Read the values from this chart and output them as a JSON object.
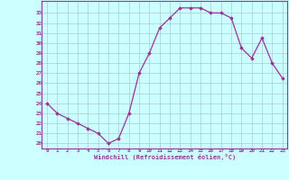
{
  "x": [
    0,
    1,
    2,
    3,
    4,
    5,
    6,
    7,
    8,
    9,
    10,
    11,
    12,
    13,
    14,
    15,
    16,
    17,
    18,
    19,
    20,
    21,
    22,
    23
  ],
  "y": [
    24.0,
    23.0,
    22.5,
    22.0,
    21.5,
    21.0,
    20.0,
    20.5,
    23.0,
    27.0,
    29.0,
    31.5,
    32.5,
    33.5,
    33.5,
    33.5,
    33.0,
    33.0,
    32.5,
    29.5,
    28.5,
    30.5,
    28.0,
    26.5
  ],
  "line_color": "#993399",
  "marker": "D",
  "markersize": 1.8,
  "linewidth": 0.9,
  "bg_color": "#ccffff",
  "grid_color": "#aacccc",
  "xlabel": "Windchill (Refroidissement éolien,°C)",
  "xlabel_color": "#993399",
  "tick_color": "#993399",
  "ylim": [
    19.5,
    34.2
  ],
  "yticks": [
    20,
    21,
    22,
    23,
    24,
    25,
    26,
    27,
    28,
    29,
    30,
    31,
    32,
    33
  ],
  "xlim": [
    -0.5,
    23.5
  ],
  "xticks": [
    0,
    1,
    2,
    3,
    4,
    5,
    6,
    7,
    8,
    9,
    10,
    11,
    12,
    13,
    14,
    15,
    16,
    17,
    18,
    19,
    20,
    21,
    22,
    23
  ]
}
